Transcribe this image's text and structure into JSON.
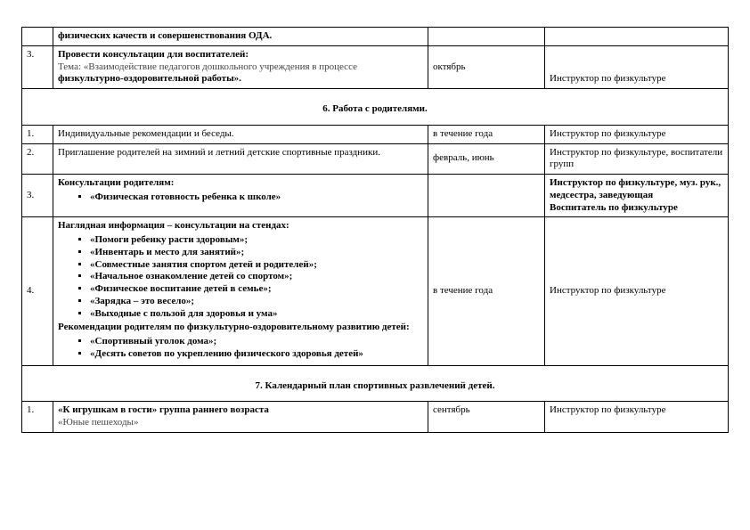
{
  "top": {
    "row0": {
      "num": "",
      "desc": "физических качеств и совершенствования ОДА.",
      "date": "",
      "resp": ""
    },
    "row1": {
      "num": "3.",
      "desc_line1": "Провести консультации для воспитателей:",
      "desc_line2": "Тема: «Взаимодействие педагогов дошкольного учреждения в процессе",
      "desc_line3": " физкультурно-оздоровительной работы».",
      "date": "октябрь",
      "resp": "Инструктор по физкультуре"
    }
  },
  "section6": {
    "title": "6. Работа с родителями.",
    "row1": {
      "num": "1.",
      "desc": "Индивидуальные рекомендации и беседы.",
      "date": "в течение года",
      "resp": "Инструктор по физкультуре"
    },
    "row2": {
      "num": "2.",
      "desc": "Приглашение родителей на зимний и летний детские спортивные праздники.",
      "date": "февраль, июнь",
      "resp": "Инструктор по физкультуре, воспитатели групп"
    },
    "row3": {
      "num": "3.",
      "desc_bold": "Консультации родителям:",
      "bullet1": "«Физическая готовность ребенка к школе»",
      "resp_line1": "Инструктор по физкультуре, муз. рук.,",
      "resp_line2": "медсестра, заведующая",
      "resp_line3": "Воспитатель по физкультуре"
    },
    "row4": {
      "num": "4.",
      "desc_bold": "Наглядная информация – консультации на стендах:",
      "b1": "«Помоги ребенку расти здоровым»;",
      "b2": "«Инвентарь и место для занятий»;",
      "b3": "«Совместные занятия спортом детей и родителей»;",
      "b4": "«Начальное ознакомление детей со спортом»;",
      "b5": "«Физическое воспитание детей в семье»;",
      "b6": "«Зарядка – это весело»;",
      "b7": "«Выходные с пользой для здоровья и ума»",
      "desc_bold2": "Рекомендации родителям по физкультурно-оздоровительному развитию детей:",
      "b8": "«Спортивный уголок дома»;",
      "b9": "«Десять советов по укреплению физического здоровья детей»",
      "date": "в течение года",
      "resp": "Инструктор по физкультуре"
    }
  },
  "section7": {
    "title": "7. Календарный план спортивных развлечений детей.",
    "row1": {
      "num": "1.",
      "desc_bold": "«К игрушкам в гости» группа раннего возраста",
      "desc_plain": "«Юные пешеходы»",
      "date": "сентябрь",
      "resp": "Инструктор по физкультуре"
    }
  }
}
